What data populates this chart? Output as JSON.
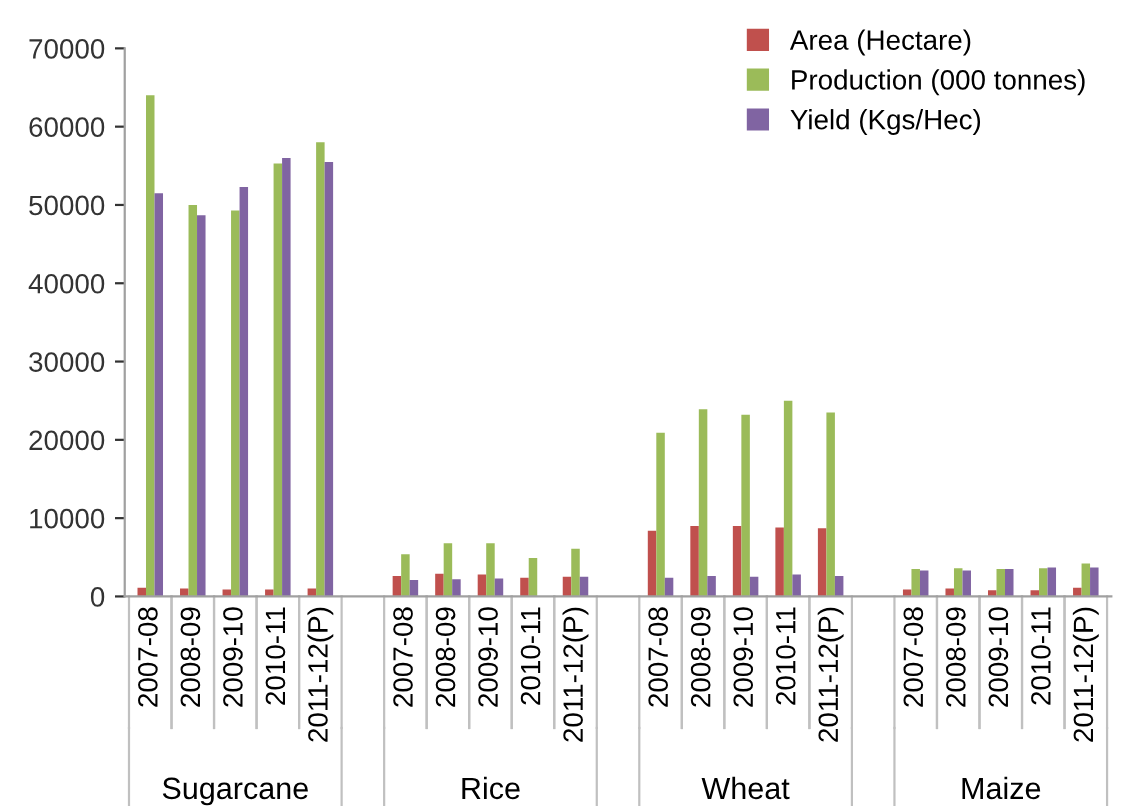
{
  "chart_data": {
    "type": "bar",
    "categories": [
      "2007-08",
      "2008-09",
      "2009-10",
      "2010-11",
      "2011-12(P)",
      null,
      "2007-08",
      "2008-09",
      "2009-10",
      "2010-11",
      "2011-12(P)",
      null,
      "2007-08",
      "2008-09",
      "2009-10",
      "2010-11",
      "2011-12(P)",
      null,
      "2007-08",
      "2008-09",
      "2009-10",
      "2010-11",
      "2011-12(P)"
    ],
    "series": [
      {
        "name": "Area (Hectare)",
        "color": "#c0504d",
        "values": [
          1100,
          1000,
          900,
          900,
          1000,
          null,
          2600,
          2900,
          2800,
          2400,
          2500,
          null,
          8400,
          9000,
          9000,
          8800,
          8700,
          null,
          900,
          1000,
          800,
          800,
          1100
        ]
      },
      {
        "name": "Production (000 tonnes)",
        "color": "#9bbb59",
        "values": [
          64000,
          50000,
          49300,
          55300,
          58000,
          null,
          5400,
          6800,
          6800,
          4900,
          6100,
          null,
          20900,
          23900,
          23200,
          25000,
          23500,
          null,
          3500,
          3600,
          3500,
          3600,
          4200
        ]
      },
      {
        "name": "Yield (Kgs/Hec)",
        "color": "#8064a2",
        "values": [
          51500,
          48700,
          52300,
          56000,
          55500,
          null,
          2100,
          2200,
          2300,
          null,
          2500,
          null,
          2400,
          2600,
          2500,
          2800,
          2600,
          null,
          3300,
          3300,
          3500,
          3700,
          3700
        ]
      }
    ],
    "annotations": [
      "Sugarcane",
      "Rice",
      "Wheat",
      "Maize"
    ],
    "ylim": [
      0,
      70000
    ],
    "yticks": [
      0,
      10000,
      20000,
      30000,
      40000,
      50000,
      60000,
      70000
    ],
    "grid": false,
    "legend": "top right"
  }
}
